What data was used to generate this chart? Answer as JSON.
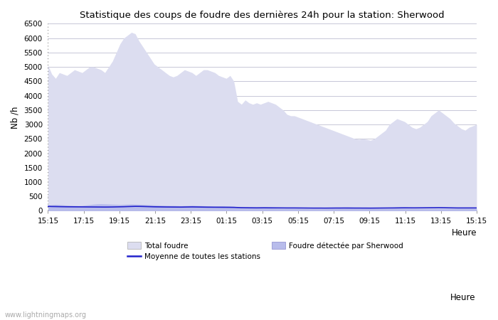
{
  "title": "Statistique des coups de foudre des dernières 24h pour la station: Sherwood",
  "xlabel": "Heure",
  "ylabel": "Nb /h",
  "ylim": [
    0,
    6500
  ],
  "yticks": [
    0,
    500,
    1000,
    1500,
    2000,
    2500,
    3000,
    3500,
    4000,
    4500,
    5000,
    5500,
    6000,
    6500
  ],
  "xtick_labels": [
    "15:15",
    "17:15",
    "19:15",
    "21:15",
    "23:15",
    "01:15",
    "03:15",
    "05:15",
    "07:15",
    "09:15",
    "11:15",
    "13:15",
    "15:15"
  ],
  "bg_color": "#ffffff",
  "plot_bg_color": "#ffffff",
  "grid_color": "#c8c8d8",
  "fill_total_color": "#dcddf0",
  "fill_sherwood_color": "#b8bceb",
  "line_mean_color": "#2222cc",
  "watermark": "www.lightningmaps.org",
  "total_foudre": [
    5050,
    4750,
    4600,
    4800,
    4750,
    4700,
    4800,
    4900,
    4850,
    4800,
    4900,
    5000,
    5000,
    4950,
    4900,
    4800,
    5000,
    5200,
    5500,
    5800,
    6000,
    6100,
    6200,
    6150,
    5900,
    5700,
    5500,
    5300,
    5100,
    5000,
    4900,
    4800,
    4700,
    4650,
    4700,
    4800,
    4900,
    4850,
    4800,
    4700,
    4800,
    4900,
    4900,
    4850,
    4800,
    4700,
    4650,
    4600,
    4700,
    4500,
    3800,
    3700,
    3850,
    3750,
    3700,
    3750,
    3700,
    3750,
    3800,
    3750,
    3700,
    3600,
    3500,
    3350,
    3300,
    3300,
    3250,
    3200,
    3150,
    3100,
    3050,
    3000,
    2950,
    2900,
    2850,
    2800,
    2750,
    2700,
    2650,
    2600,
    2550,
    2500,
    2480,
    2500,
    2480,
    2450,
    2500,
    2600,
    2700,
    2800,
    3000,
    3100,
    3200,
    3150,
    3100,
    3000,
    2900,
    2850,
    2900,
    3000,
    3100,
    3300,
    3400,
    3500,
    3400,
    3300,
    3200,
    3050,
    2950,
    2850,
    2800,
    2900,
    2950,
    3000
  ],
  "sherwood": [
    200,
    210,
    220,
    215,
    205,
    195,
    190,
    185,
    180,
    185,
    200,
    215,
    230,
    240,
    245,
    240,
    235,
    230,
    225,
    220,
    225,
    230,
    235,
    230,
    225,
    220,
    215,
    210,
    205,
    200,
    195,
    190,
    185,
    185,
    180,
    175,
    180,
    185,
    190,
    185,
    180,
    175,
    170,
    165,
    160,
    165,
    170,
    165,
    160,
    155,
    130,
    115,
    110,
    105,
    110,
    115,
    110,
    105,
    100,
    95,
    90,
    85,
    80,
    80,
    80,
    80,
    80,
    75,
    75,
    70,
    70,
    70,
    70,
    70,
    75,
    80,
    80,
    85,
    85,
    90,
    85,
    80,
    80,
    80,
    80,
    80,
    80,
    80,
    80,
    80,
    80,
    85,
    90,
    90,
    90,
    85,
    80,
    80,
    80,
    80,
    80,
    80,
    80,
    80,
    80,
    80,
    80,
    80,
    80,
    80,
    80,
    80,
    80,
    80
  ],
  "mean_line": [
    155,
    150,
    148,
    145,
    143,
    141,
    140,
    139,
    138,
    137,
    136,
    135,
    134,
    133,
    132,
    131,
    132,
    134,
    137,
    140,
    143,
    148,
    152,
    156,
    155,
    152,
    148,
    144,
    140,
    138,
    136,
    134,
    133,
    132,
    131,
    130,
    132,
    134,
    136,
    134,
    132,
    130,
    128,
    127,
    126,
    125,
    124,
    123,
    122,
    120,
    115,
    110,
    108,
    106,
    105,
    104,
    105,
    106,
    105,
    104,
    103,
    102,
    101,
    100,
    100,
    100,
    99,
    98,
    97,
    96,
    95,
    95,
    95,
    94,
    95,
    96,
    97,
    97,
    98,
    98,
    97,
    96,
    96,
    95,
    95,
    94,
    95,
    96,
    97,
    98,
    99,
    100,
    102,
    104,
    105,
    104,
    103,
    103,
    104,
    105,
    106,
    107,
    108,
    110,
    108,
    106,
    104,
    102,
    100,
    100,
    100,
    100,
    100,
    100
  ]
}
